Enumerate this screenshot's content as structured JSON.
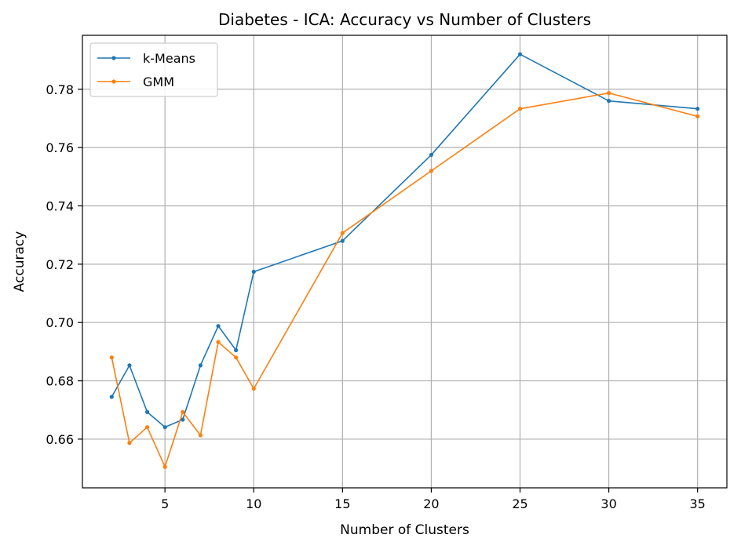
{
  "chart_data": {
    "type": "line",
    "title": "Diabetes - ICA: Accuracy vs Number of Clusters",
    "xlabel": "Number of Clusters",
    "ylabel": "Accuracy",
    "xlim": [
      0.35,
      36.65
    ],
    "ylim": [
      0.6433,
      0.7985
    ],
    "xticks": [
      5,
      10,
      15,
      20,
      25,
      30,
      35
    ],
    "yticks": [
      0.66,
      0.68,
      0.7,
      0.72,
      0.74,
      0.76,
      0.78
    ],
    "ytick_labels": [
      "0.66",
      "0.68",
      "0.70",
      "0.72",
      "0.74",
      "0.76",
      "0.78"
    ],
    "grid": true,
    "legend": "upper-left",
    "x": [
      2,
      3,
      4,
      5,
      6,
      7,
      8,
      9,
      10,
      15,
      20,
      25,
      30,
      35
    ],
    "series": [
      {
        "name": "k-Means",
        "color": "#1f77b4",
        "values": [
          0.6745,
          0.6853,
          0.6693,
          0.6641,
          0.6667,
          0.6853,
          0.6988,
          0.6905,
          0.7174,
          0.728,
          0.7575,
          0.792,
          0.776,
          0.7733
        ]
      },
      {
        "name": "GMM",
        "color": "#ff7f0e",
        "values": [
          0.688,
          0.6587,
          0.6641,
          0.6505,
          0.6693,
          0.6613,
          0.6933,
          0.688,
          0.6773,
          0.7307,
          0.752,
          0.7733,
          0.7787,
          0.7707
        ]
      }
    ]
  }
}
